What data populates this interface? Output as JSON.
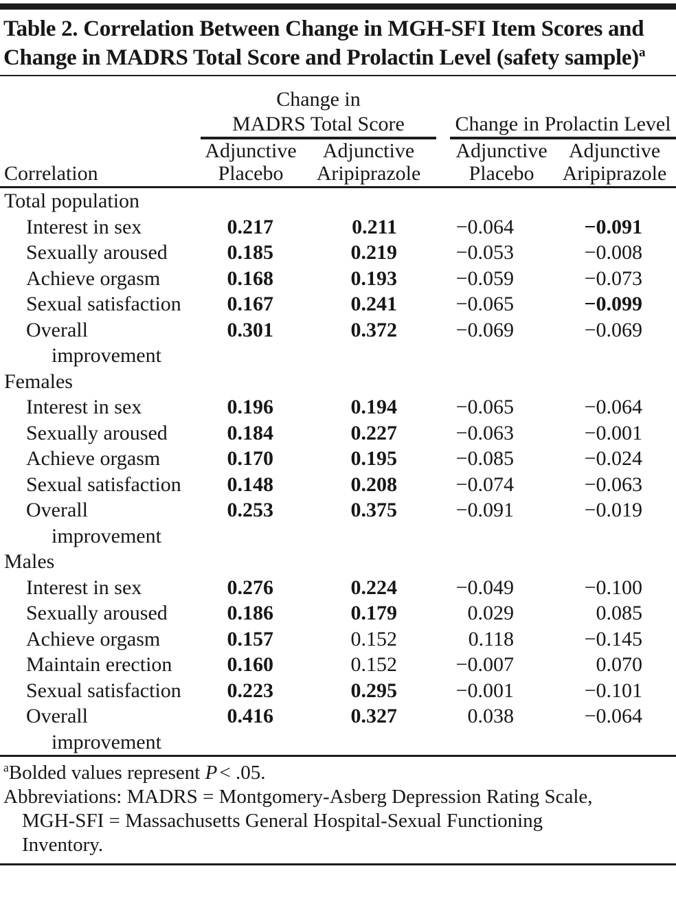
{
  "page": {
    "title": "Table 2. Correlation Between Change in MGH-SFI Item Scores and Change in MADRS Total Score and Prolactin Level (safety sample)",
    "title_note_marker": "a"
  },
  "table": {
    "corner_header": "Correlation",
    "groups": [
      {
        "line1": "Change in",
        "line2": "MADRS Total Score"
      },
      {
        "line1": "Change in Prolactin Level"
      }
    ],
    "sub_headers": [
      {
        "line1": "Adjunctive",
        "line2": "Placebo"
      },
      {
        "line1": "Adjunctive",
        "line2": "Aripiprazole"
      },
      {
        "line1": "Adjunctive",
        "line2": "Placebo"
      },
      {
        "line1": "Adjunctive",
        "line2": "Aripiprazole"
      }
    ],
    "sections": [
      {
        "label": "Total population",
        "rows": [
          {
            "label": "Interest in sex",
            "values": [
              "0.217",
              "0.211",
              "−0.064",
              "−0.091"
            ],
            "bold": [
              true,
              true,
              false,
              true
            ]
          },
          {
            "label": "Sexually aroused",
            "values": [
              "0.185",
              "0.219",
              "−0.053",
              "−0.008"
            ],
            "bold": [
              true,
              true,
              false,
              false
            ]
          },
          {
            "label": "Achieve orgasm",
            "values": [
              "0.168",
              "0.193",
              "−0.059",
              "−0.073"
            ],
            "bold": [
              true,
              true,
              false,
              false
            ]
          },
          {
            "label": "Sexual satisfaction",
            "values": [
              "0.167",
              "0.241",
              "−0.065",
              "−0.099"
            ],
            "bold": [
              true,
              true,
              false,
              true
            ]
          },
          {
            "label": "Overall improvement",
            "label_lines": [
              "Overall",
              "improvement"
            ],
            "values": [
              "0.301",
              "0.372",
              "−0.069",
              "−0.069"
            ],
            "bold": [
              true,
              true,
              false,
              false
            ]
          }
        ]
      },
      {
        "label": "Females",
        "rows": [
          {
            "label": "Interest in sex",
            "values": [
              "0.196",
              "0.194",
              "−0.065",
              "−0.064"
            ],
            "bold": [
              true,
              true,
              false,
              false
            ]
          },
          {
            "label": "Sexually aroused",
            "values": [
              "0.184",
              "0.227",
              "−0.063",
              "−0.001"
            ],
            "bold": [
              true,
              true,
              false,
              false
            ]
          },
          {
            "label": "Achieve orgasm",
            "values": [
              "0.170",
              "0.195",
              "−0.085",
              "−0.024"
            ],
            "bold": [
              true,
              true,
              false,
              false
            ]
          },
          {
            "label": "Sexual satisfaction",
            "values": [
              "0.148",
              "0.208",
              "−0.074",
              "−0.063"
            ],
            "bold": [
              true,
              true,
              false,
              false
            ]
          },
          {
            "label": "Overall improvement",
            "label_lines": [
              "Overall",
              "improvement"
            ],
            "values": [
              "0.253",
              "0.375",
              "−0.091",
              "−0.019"
            ],
            "bold": [
              true,
              true,
              false,
              false
            ]
          }
        ]
      },
      {
        "label": "Males",
        "rows": [
          {
            "label": "Interest in sex",
            "values": [
              "0.276",
              "0.224",
              "−0.049",
              "−0.100"
            ],
            "bold": [
              true,
              true,
              false,
              false
            ]
          },
          {
            "label": "Sexually aroused",
            "values": [
              "0.186",
              "0.179",
              "0.029",
              "0.085"
            ],
            "bold": [
              true,
              true,
              false,
              false
            ]
          },
          {
            "label": "Achieve orgasm",
            "values": [
              "0.157",
              "0.152",
              "0.118",
              "−0.145"
            ],
            "bold": [
              true,
              false,
              false,
              false
            ]
          },
          {
            "label": "Maintain erection",
            "values": [
              "0.160",
              "0.152",
              "−0.007",
              "0.070"
            ],
            "bold": [
              true,
              false,
              false,
              false
            ]
          },
          {
            "label": "Sexual satisfaction",
            "values": [
              "0.223",
              "0.295",
              "−0.001",
              "−0.101"
            ],
            "bold": [
              true,
              true,
              false,
              false
            ]
          },
          {
            "label": "Overall improvement",
            "label_lines": [
              "Overall",
              "improvement"
            ],
            "values": [
              "0.416",
              "0.327",
              "0.038",
              "−0.064"
            ],
            "bold": [
              true,
              true,
              false,
              false
            ]
          }
        ]
      }
    ]
  },
  "footnotes": {
    "significance": {
      "marker": "a",
      "prefix": "Bolded values represent",
      "italic_term": "P",
      "suffix": "< .05."
    },
    "abbreviations": {
      "lines": [
        "Abbreviations: MADRS = Montgomery-Asberg Depression Rating Scale,",
        "MGH-SFI = Massachusetts General Hospital-Sexual Functioning",
        "Inventory."
      ]
    }
  }
}
